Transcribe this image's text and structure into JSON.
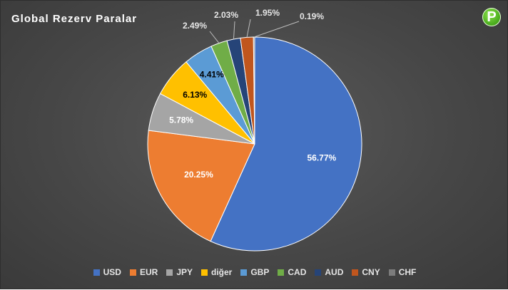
{
  "chart_data": {
    "type": "pie",
    "title": "Global Rezerv Paralar",
    "slices": [
      {
        "name": "USD",
        "value": 56.77,
        "label": "56.77%",
        "color": "#4472c4",
        "label_color": "#ffffff"
      },
      {
        "name": "EUR",
        "value": 20.25,
        "label": "20.25%",
        "color": "#ed7d31",
        "label_color": "#ffffff"
      },
      {
        "name": "JPY",
        "value": 5.78,
        "label": "5.78%",
        "color": "#a5a5a5",
        "label_color": "#ffffff"
      },
      {
        "name": "diğer",
        "value": 6.13,
        "label": "6.13%",
        "color": "#ffc000",
        "label_color": "#000000"
      },
      {
        "name": "GBP",
        "value": 4.41,
        "label": "4.41%",
        "color": "#5b9bd5",
        "label_color": "#000000"
      },
      {
        "name": "CAD",
        "value": 2.49,
        "label": "2.49%",
        "color": "#70ad47",
        "label_color": "#e6e6e6"
      },
      {
        "name": "AUD",
        "value": 2.03,
        "label": "2.03%",
        "color": "#264478",
        "label_color": "#e6e6e6"
      },
      {
        "name": "CNY",
        "value": 1.95,
        "label": "1.95%",
        "color": "#c0561e",
        "label_color": "#e6e6e6"
      },
      {
        "name": "CHF",
        "value": 0.19,
        "label": "0.19%",
        "color": "#7c7c7c",
        "label_color": "#e6e6e6"
      }
    ],
    "legend_position": "bottom"
  },
  "badge": {
    "letter": "P",
    "color": "#4cae1f"
  }
}
